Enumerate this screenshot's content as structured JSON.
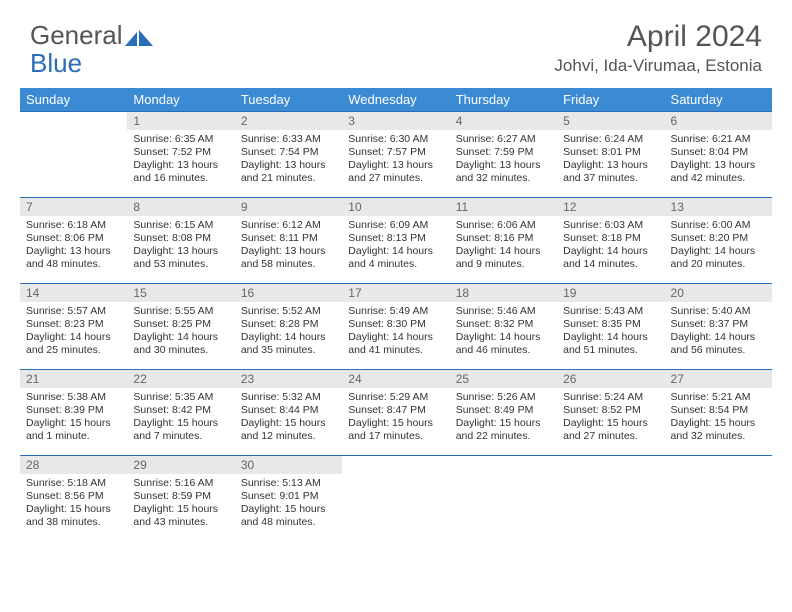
{
  "logo": {
    "text_part1": "General",
    "text_part2": "Blue"
  },
  "title": "April 2024",
  "location": "Johvi, Ida-Virumaa, Estonia",
  "colors": {
    "header_bg": "#3b8bd4",
    "border": "#2a6db8",
    "daynum_bg": "#e8e8e8",
    "text": "#333333",
    "muted": "#666666"
  },
  "weekdays": [
    "Sunday",
    "Monday",
    "Tuesday",
    "Wednesday",
    "Thursday",
    "Friday",
    "Saturday"
  ],
  "weeks": [
    [
      {
        "day": "",
        "sunrise": "",
        "sunset": "",
        "daylight": ""
      },
      {
        "day": "1",
        "sunrise": "Sunrise: 6:35 AM",
        "sunset": "Sunset: 7:52 PM",
        "daylight": "Daylight: 13 hours and 16 minutes."
      },
      {
        "day": "2",
        "sunrise": "Sunrise: 6:33 AM",
        "sunset": "Sunset: 7:54 PM",
        "daylight": "Daylight: 13 hours and 21 minutes."
      },
      {
        "day": "3",
        "sunrise": "Sunrise: 6:30 AM",
        "sunset": "Sunset: 7:57 PM",
        "daylight": "Daylight: 13 hours and 27 minutes."
      },
      {
        "day": "4",
        "sunrise": "Sunrise: 6:27 AM",
        "sunset": "Sunset: 7:59 PM",
        "daylight": "Daylight: 13 hours and 32 minutes."
      },
      {
        "day": "5",
        "sunrise": "Sunrise: 6:24 AM",
        "sunset": "Sunset: 8:01 PM",
        "daylight": "Daylight: 13 hours and 37 minutes."
      },
      {
        "day": "6",
        "sunrise": "Sunrise: 6:21 AM",
        "sunset": "Sunset: 8:04 PM",
        "daylight": "Daylight: 13 hours and 42 minutes."
      }
    ],
    [
      {
        "day": "7",
        "sunrise": "Sunrise: 6:18 AM",
        "sunset": "Sunset: 8:06 PM",
        "daylight": "Daylight: 13 hours and 48 minutes."
      },
      {
        "day": "8",
        "sunrise": "Sunrise: 6:15 AM",
        "sunset": "Sunset: 8:08 PM",
        "daylight": "Daylight: 13 hours and 53 minutes."
      },
      {
        "day": "9",
        "sunrise": "Sunrise: 6:12 AM",
        "sunset": "Sunset: 8:11 PM",
        "daylight": "Daylight: 13 hours and 58 minutes."
      },
      {
        "day": "10",
        "sunrise": "Sunrise: 6:09 AM",
        "sunset": "Sunset: 8:13 PM",
        "daylight": "Daylight: 14 hours and 4 minutes."
      },
      {
        "day": "11",
        "sunrise": "Sunrise: 6:06 AM",
        "sunset": "Sunset: 8:16 PM",
        "daylight": "Daylight: 14 hours and 9 minutes."
      },
      {
        "day": "12",
        "sunrise": "Sunrise: 6:03 AM",
        "sunset": "Sunset: 8:18 PM",
        "daylight": "Daylight: 14 hours and 14 minutes."
      },
      {
        "day": "13",
        "sunrise": "Sunrise: 6:00 AM",
        "sunset": "Sunset: 8:20 PM",
        "daylight": "Daylight: 14 hours and 20 minutes."
      }
    ],
    [
      {
        "day": "14",
        "sunrise": "Sunrise: 5:57 AM",
        "sunset": "Sunset: 8:23 PM",
        "daylight": "Daylight: 14 hours and 25 minutes."
      },
      {
        "day": "15",
        "sunrise": "Sunrise: 5:55 AM",
        "sunset": "Sunset: 8:25 PM",
        "daylight": "Daylight: 14 hours and 30 minutes."
      },
      {
        "day": "16",
        "sunrise": "Sunrise: 5:52 AM",
        "sunset": "Sunset: 8:28 PM",
        "daylight": "Daylight: 14 hours and 35 minutes."
      },
      {
        "day": "17",
        "sunrise": "Sunrise: 5:49 AM",
        "sunset": "Sunset: 8:30 PM",
        "daylight": "Daylight: 14 hours and 41 minutes."
      },
      {
        "day": "18",
        "sunrise": "Sunrise: 5:46 AM",
        "sunset": "Sunset: 8:32 PM",
        "daylight": "Daylight: 14 hours and 46 minutes."
      },
      {
        "day": "19",
        "sunrise": "Sunrise: 5:43 AM",
        "sunset": "Sunset: 8:35 PM",
        "daylight": "Daylight: 14 hours and 51 minutes."
      },
      {
        "day": "20",
        "sunrise": "Sunrise: 5:40 AM",
        "sunset": "Sunset: 8:37 PM",
        "daylight": "Daylight: 14 hours and 56 minutes."
      }
    ],
    [
      {
        "day": "21",
        "sunrise": "Sunrise: 5:38 AM",
        "sunset": "Sunset: 8:39 PM",
        "daylight": "Daylight: 15 hours and 1 minute."
      },
      {
        "day": "22",
        "sunrise": "Sunrise: 5:35 AM",
        "sunset": "Sunset: 8:42 PM",
        "daylight": "Daylight: 15 hours and 7 minutes."
      },
      {
        "day": "23",
        "sunrise": "Sunrise: 5:32 AM",
        "sunset": "Sunset: 8:44 PM",
        "daylight": "Daylight: 15 hours and 12 minutes."
      },
      {
        "day": "24",
        "sunrise": "Sunrise: 5:29 AM",
        "sunset": "Sunset: 8:47 PM",
        "daylight": "Daylight: 15 hours and 17 minutes."
      },
      {
        "day": "25",
        "sunrise": "Sunrise: 5:26 AM",
        "sunset": "Sunset: 8:49 PM",
        "daylight": "Daylight: 15 hours and 22 minutes."
      },
      {
        "day": "26",
        "sunrise": "Sunrise: 5:24 AM",
        "sunset": "Sunset: 8:52 PM",
        "daylight": "Daylight: 15 hours and 27 minutes."
      },
      {
        "day": "27",
        "sunrise": "Sunrise: 5:21 AM",
        "sunset": "Sunset: 8:54 PM",
        "daylight": "Daylight: 15 hours and 32 minutes."
      }
    ],
    [
      {
        "day": "28",
        "sunrise": "Sunrise: 5:18 AM",
        "sunset": "Sunset: 8:56 PM",
        "daylight": "Daylight: 15 hours and 38 minutes."
      },
      {
        "day": "29",
        "sunrise": "Sunrise: 5:16 AM",
        "sunset": "Sunset: 8:59 PM",
        "daylight": "Daylight: 15 hours and 43 minutes."
      },
      {
        "day": "30",
        "sunrise": "Sunrise: 5:13 AM",
        "sunset": "Sunset: 9:01 PM",
        "daylight": "Daylight: 15 hours and 48 minutes."
      },
      {
        "day": "",
        "sunrise": "",
        "sunset": "",
        "daylight": ""
      },
      {
        "day": "",
        "sunrise": "",
        "sunset": "",
        "daylight": ""
      },
      {
        "day": "",
        "sunrise": "",
        "sunset": "",
        "daylight": ""
      },
      {
        "day": "",
        "sunrise": "",
        "sunset": "",
        "daylight": ""
      }
    ]
  ]
}
